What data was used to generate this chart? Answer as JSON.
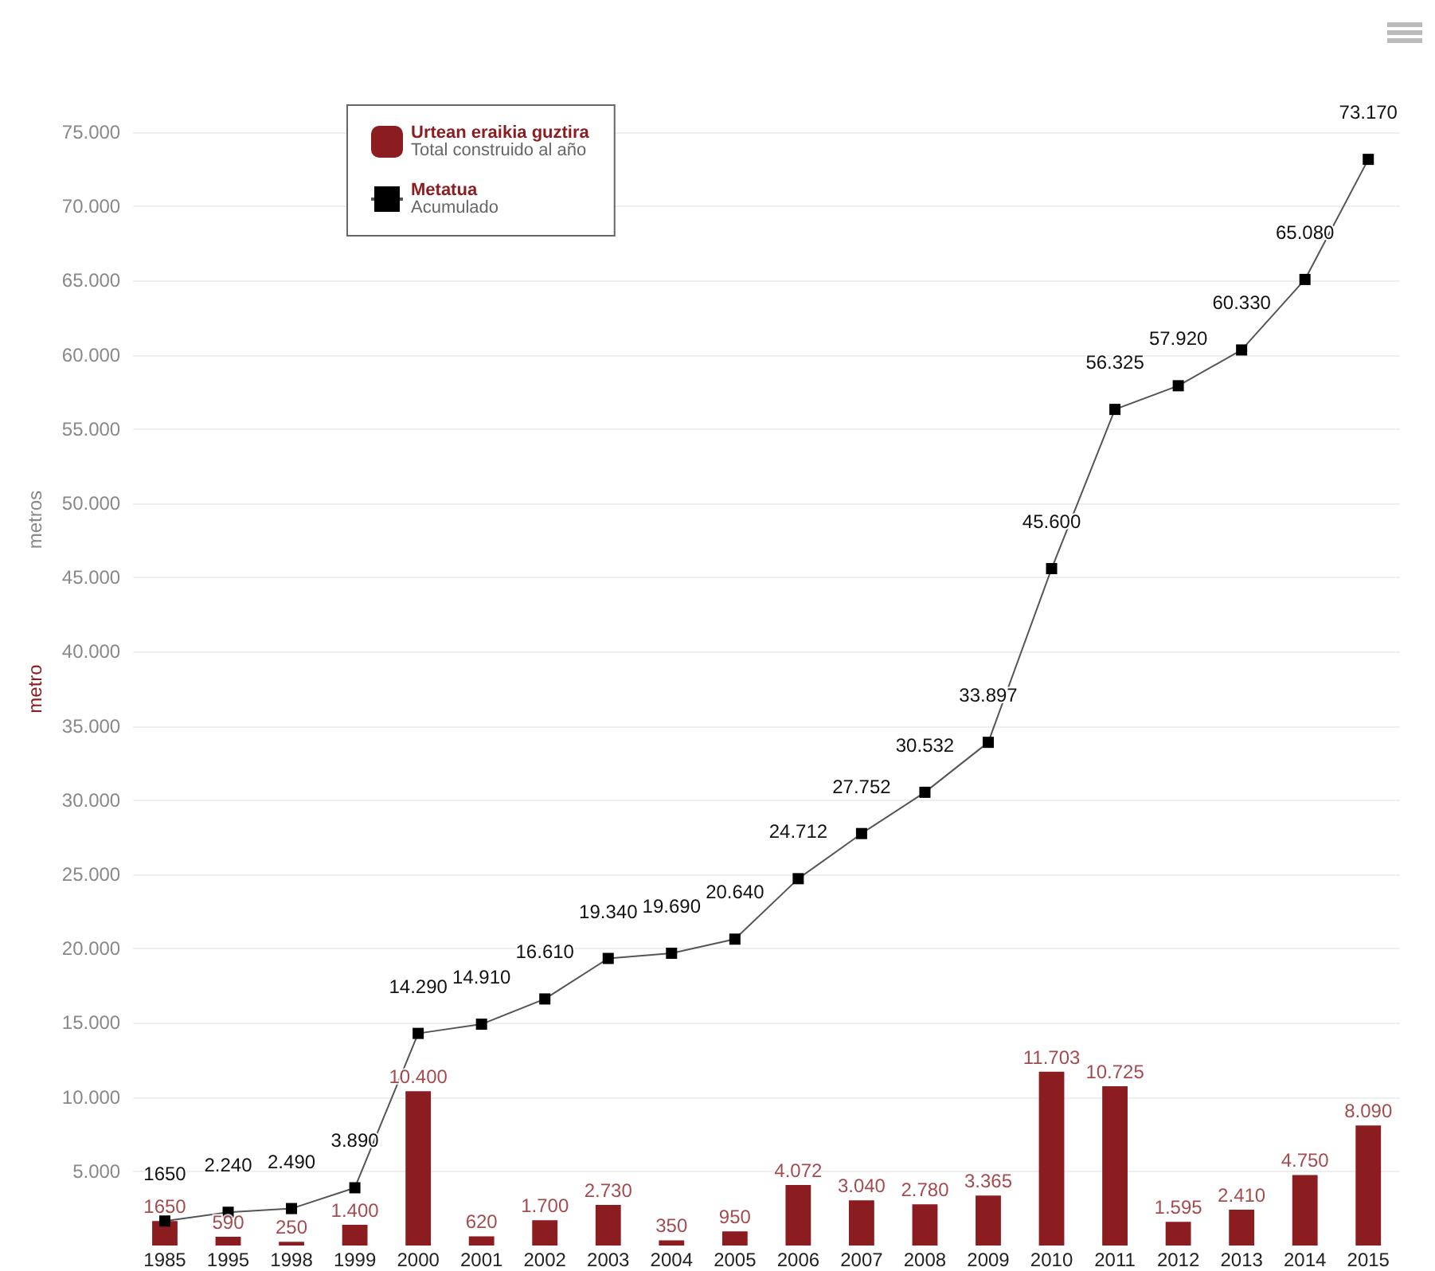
{
  "chart_data": {
    "type": "bar",
    "ylabel": "metro",
    "annotations": [
      "metros"
    ],
    "categories": [
      "1985",
      "1995",
      "1998",
      "1999",
      "2000",
      "2001",
      "2002",
      "2003",
      "2004",
      "2005",
      "2006",
      "2007",
      "2008",
      "2009",
      "2010",
      "2011",
      "2012",
      "2013",
      "2014",
      "2015"
    ],
    "series": [
      {
        "name": "Urtean eraikia guztira\nTotal construido al año",
        "color": "#8b1c1f",
        "values": [
          1650,
          590,
          250,
          1400,
          10400,
          620,
          1700,
          2730,
          350,
          950,
          4072,
          3040,
          2780,
          3365,
          11703,
          10725,
          1595,
          2410,
          4750,
          8090
        ],
        "value_labels": [
          "1650",
          "590",
          "250",
          "1.400",
          "10.400",
          "620",
          "1.700",
          "2.730",
          "350",
          "950",
          "4.072",
          "3.040",
          "2.780",
          "3.365",
          "11.703",
          "10.725",
          "1.595",
          "2.410",
          "4.750",
          "8.090"
        ]
      },
      {
        "name": "Metatua\nAcumulado",
        "type": "line",
        "color": "#000000",
        "marker": "square",
        "values": [
          1650,
          2240,
          2490,
          3890,
          14290,
          14910,
          16610,
          19340,
          19690,
          20640,
          24712,
          27752,
          30532,
          33897,
          45600,
          56325,
          57920,
          60330,
          65080,
          73170
        ],
        "value_labels": [
          "1650",
          "2.240",
          "2.490",
          "3.890",
          "14.290",
          "14.910",
          "16.610",
          "19.340",
          "19.690",
          "20.640",
          "24.712",
          "27.752",
          "30.532",
          "33.897",
          "45.600",
          "56.325",
          "57.920",
          "60.330",
          "65.080",
          "73.170"
        ]
      }
    ],
    "ylim": [
      0,
      75000
    ],
    "yticks": [
      {
        "value": 5000,
        "label": "5.000"
      },
      {
        "value": 10000,
        "label": "10.000"
      },
      {
        "value": 15000,
        "label": "15.000"
      },
      {
        "value": 20000,
        "label": "20.000"
      },
      {
        "value": 25000,
        "label": "25.000"
      },
      {
        "value": 30000,
        "label": "30.000"
      },
      {
        "value": 35000,
        "label": "35.000"
      },
      {
        "value": 40000,
        "label": "40.000"
      },
      {
        "value": 45000,
        "label": "45.000"
      },
      {
        "value": 50000,
        "label": "50.000"
      },
      {
        "value": 55000,
        "label": "55.000"
      },
      {
        "value": 60000,
        "label": "60.000"
      },
      {
        "value": 65000,
        "label": "65.000"
      },
      {
        "value": 70000,
        "label": "70.000"
      },
      {
        "value": 75000,
        "label": "75.000"
      }
    ],
    "grid": "y",
    "legend": "top left"
  }
}
